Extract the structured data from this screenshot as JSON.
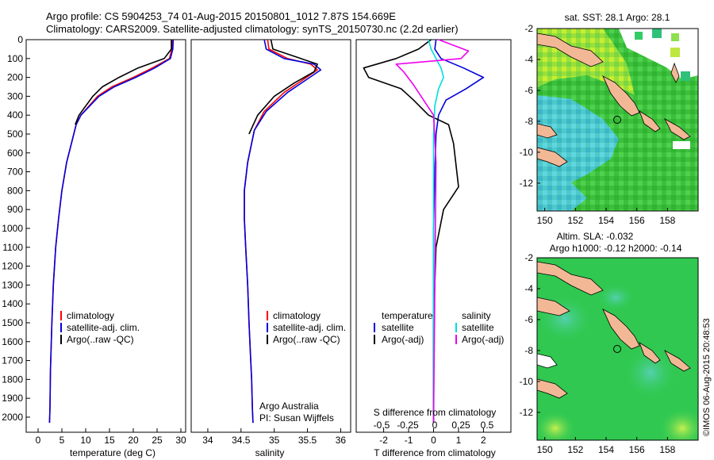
{
  "title": {
    "line1": "Argo profile: CS 5904253_74 01-Aug-2015 20150801_1012 7.87S 154.669E",
    "line2": "Climatology: CARS2009. Satellite-adjusted climatology: synTS_20150730.nc (2.2d earlier)"
  },
  "side_label": "©IMOS 06-Aug-2015 20:48:53",
  "colors": {
    "climatology": "#ff0000",
    "satellite": "#0000dd",
    "argo": "#000000",
    "sat_salinity": "#00dddd",
    "argo_salinity": "#ee00ee",
    "land": "#f2b896",
    "sst_ocean": "#33cc33",
    "sla_ocean": "#22cc55"
  },
  "chart_data": [
    {
      "type": "line",
      "name": "temperature",
      "xlabel": "temperature (deg C)",
      "ylabel": "",
      "xlim": [
        -2.5,
        31
      ],
      "ylim": [
        2080,
        0
      ],
      "xticks": [
        0,
        5,
        10,
        15,
        20,
        25,
        30
      ],
      "yticks": [
        0,
        100,
        200,
        300,
        400,
        500,
        600,
        700,
        800,
        900,
        1000,
        1100,
        1200,
        1300,
        1400,
        1500,
        1600,
        1700,
        1800,
        1900,
        2000
      ],
      "legend": [
        "climatology",
        "satellite-adj. clim.",
        "Argo(..raw -QC)"
      ],
      "legend_position": "bottom-center",
      "series": [
        {
          "name": "climatology",
          "color": "#ff0000",
          "x": [
            28.2,
            28.1,
            27.6,
            24.0,
            20.0,
            15.5,
            12.5,
            9.0,
            8.0,
            7.0,
            6.0,
            5.0,
            4.3,
            3.7,
            3.2,
            2.9,
            2.6,
            2.5,
            2.4
          ],
          "y": [
            0,
            50,
            100,
            150,
            200,
            250,
            300,
            400,
            450,
            550,
            650,
            800,
            950,
            1100,
            1300,
            1500,
            1750,
            1950,
            2030
          ]
        },
        {
          "name": "satellite-adj. clim.",
          "color": "#0000dd",
          "x": [
            28.4,
            28.3,
            27.8,
            24.5,
            20.5,
            16.0,
            12.8,
            9.0,
            8.0,
            7.0,
            6.0,
            5.0,
            4.3,
            3.7,
            3.2,
            2.9,
            2.6,
            2.5,
            2.4
          ],
          "y": [
            0,
            50,
            100,
            150,
            200,
            250,
            300,
            400,
            450,
            550,
            650,
            800,
            950,
            1100,
            1300,
            1500,
            1750,
            1950,
            2030
          ]
        },
        {
          "name": "Argo(..raw -QC)",
          "color": "#000000",
          "x": [
            28.0,
            28.0,
            26.5,
            21.0,
            17.0,
            13.5,
            11.5,
            8.6,
            7.8
          ],
          "y": [
            0,
            50,
            100,
            150,
            200,
            250,
            300,
            400,
            450
          ]
        }
      ]
    },
    {
      "type": "line",
      "name": "salinity",
      "xlabel": "salinity",
      "ylabel": "",
      "xlim": [
        33.75,
        36.15
      ],
      "ylim": [
        2080,
        0
      ],
      "xticks": [
        34,
        34.5,
        35,
        35.5,
        36
      ],
      "legend": [
        "climatology",
        "satellite-adj. clim.",
        "Argo(..raw -QC)"
      ],
      "legend_position": "bottom-center",
      "annotations": [
        "Argo Australia",
        "PI: Susan Wijffels"
      ],
      "series": [
        {
          "name": "climatology",
          "color": "#ff0000",
          "x": [
            34.9,
            34.92,
            35.2,
            35.55,
            35.65,
            35.4,
            35.15,
            34.85,
            34.7,
            34.6,
            34.55,
            34.55,
            34.57,
            34.6,
            34.62,
            34.64,
            34.66,
            34.67,
            34.68
          ],
          "y": [
            0,
            50,
            100,
            130,
            160,
            220,
            280,
            380,
            480,
            650,
            800,
            950,
            1100,
            1300,
            1500,
            1650,
            1800,
            1950,
            2030
          ]
        },
        {
          "name": "satellite-adj. clim.",
          "color": "#0000dd",
          "x": [
            34.85,
            34.88,
            35.15,
            35.6,
            35.7,
            35.45,
            35.2,
            34.88,
            34.7,
            34.6,
            34.55,
            34.55,
            34.57,
            34.6,
            34.62,
            34.64,
            34.66,
            34.67,
            34.68
          ],
          "y": [
            0,
            50,
            100,
            130,
            160,
            220,
            280,
            380,
            480,
            650,
            800,
            950,
            1100,
            1300,
            1500,
            1650,
            1800,
            1950,
            2030
          ]
        },
        {
          "name": "Argo(..raw -QC)",
          "color": "#000000",
          "x": [
            34.95,
            34.98,
            35.4,
            35.65,
            35.6,
            35.3,
            35.0,
            34.75,
            34.62
          ],
          "y": [
            0,
            50,
            100,
            130,
            170,
            230,
            300,
            400,
            500
          ]
        }
      ]
    },
    {
      "type": "line",
      "name": "differences",
      "xlabel": "T difference from climatology",
      "xlabel_top": "S difference from climatology",
      "xlim": [
        -3.1,
        3.1
      ],
      "ylim": [
        2080,
        0
      ],
      "xticks": [
        -2,
        -1,
        0,
        1,
        2
      ],
      "xticks_top": [
        "-0.5",
        "-0.25",
        "0",
        "0.25",
        "0.5"
      ],
      "legend": {
        "temperature_title": "temperature",
        "salinity_title": "salinity",
        "temperature_entries": [
          "satellite",
          "Argo(-adj)"
        ],
        "salinity_entries": [
          "satellite",
          "Argo(-adj)"
        ]
      },
      "legend_position": "bottom",
      "series": [
        {
          "name": "temperature satellite",
          "color": "#0000dd",
          "x": [
            0.1,
            0.05,
            0.3,
            1.2,
            2.0,
            1.3,
            0.5,
            0.2,
            0.1,
            0.05,
            0.0,
            0.0,
            0.0,
            0.0
          ],
          "y": [
            0,
            50,
            100,
            150,
            200,
            260,
            320,
            400,
            500,
            700,
            1000,
            1400,
            1800,
            2030
          ]
        },
        {
          "name": "temperature Argo(-adj)",
          "color": "#000000",
          "x": [
            -0.1,
            -0.6,
            -1.5,
            -2.8,
            -2.6,
            -1.3,
            -0.8,
            -0.2,
            0.6,
            0.8,
            1.0,
            0.4,
            0.1,
            0.0,
            0.0
          ],
          "y": [
            0,
            50,
            100,
            150,
            200,
            260,
            320,
            400,
            450,
            550,
            780,
            900,
            1100,
            1500,
            2030
          ]
        },
        {
          "name": "salinity satellite",
          "color": "#00dddd",
          "x": [
            -0.2,
            -0.1,
            0.1,
            0.3,
            0.4,
            0.2,
            0.05,
            0.0,
            0.0,
            0.0
          ],
          "y": [
            0,
            50,
            100,
            150,
            200,
            260,
            350,
            500,
            1000,
            2030
          ]
        },
        {
          "name": "salinity Argo(-adj)",
          "color": "#ee00ee",
          "x": [
            0.2,
            1.4,
            1.1,
            -1.5,
            -1.2,
            -0.8,
            0.0,
            0.1,
            0.0
          ],
          "y": [
            0,
            60,
            100,
            130,
            170,
            240,
            400,
            650,
            2030
          ]
        }
      ]
    },
    {
      "type": "heatmap",
      "name": "sst_map",
      "title": "sat. SST: 28.1  Argo: 28.1",
      "xlim": [
        149.5,
        160
      ],
      "ylim": [
        -13.8,
        -2
      ],
      "xticks": [
        150,
        152,
        154,
        156,
        158
      ],
      "yticks": [
        -2,
        -4,
        -6,
        -8,
        -10,
        -12
      ],
      "marker": {
        "lon": 154.669,
        "lat": -7.87
      }
    },
    {
      "type": "heatmap",
      "name": "sla_map",
      "title": "Altim. SLA: -0.032",
      "subtitle": "Argo h1000: -0.12 h2000: -0.14",
      "xlim": [
        149.5,
        160
      ],
      "ylim": [
        -13.8,
        -2
      ],
      "xticks": [
        150,
        152,
        154,
        156,
        158
      ],
      "yticks": [
        -2,
        -4,
        -6,
        -8,
        -10,
        -12
      ],
      "marker": {
        "lon": 154.669,
        "lat": -7.87
      }
    }
  ]
}
